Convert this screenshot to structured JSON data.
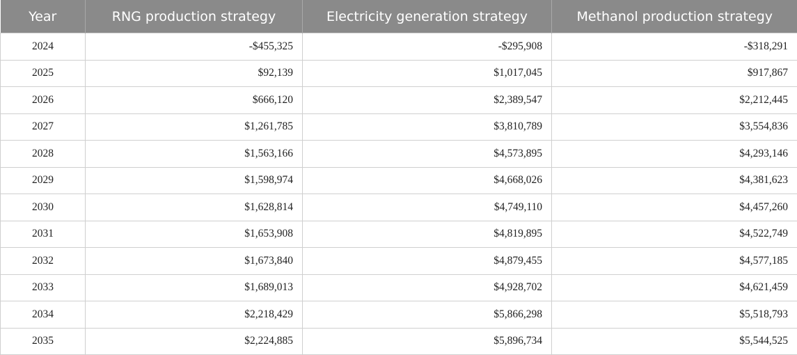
{
  "table": {
    "headers": [
      "Year",
      "RNG production strategy",
      "Electricity generation strategy",
      "Methanol production strategy"
    ],
    "rows": [
      [
        "2024",
        "-$455,325",
        "-$295,908",
        "-$318,291"
      ],
      [
        "2025",
        "$92,139",
        "$1,017,045",
        "$917,867"
      ],
      [
        "2026",
        "$666,120",
        "$2,389,547",
        "$2,212,445"
      ],
      [
        "2027",
        "$1,261,785",
        "$3,810,789",
        "$3,554,836"
      ],
      [
        "2028",
        "$1,563,166",
        "$4,573,895",
        "$4,293,146"
      ],
      [
        "2029",
        "$1,598,974",
        "$4,668,026",
        "$4,381,623"
      ],
      [
        "2030",
        "$1,628,814",
        "$4,749,110",
        "$4,457,260"
      ],
      [
        "2031",
        "$1,653,908",
        "$4,819,895",
        "$4,522,749"
      ],
      [
        "2032",
        "$1,673,840",
        "$4,879,455",
        "$4,577,185"
      ],
      [
        "2033",
        "$1,689,013",
        "$4,928,702",
        "$4,621,459"
      ],
      [
        "2034",
        "$2,218,429",
        "$5,866,298",
        "$5,518,793"
      ],
      [
        "2035",
        "$2,224,885",
        "$5,896,734",
        "$5,544,525"
      ]
    ]
  },
  "colors": {
    "header_background": "#8a8a8a",
    "header_text": "#ffffff",
    "grid_line": "#cfcfcf"
  }
}
